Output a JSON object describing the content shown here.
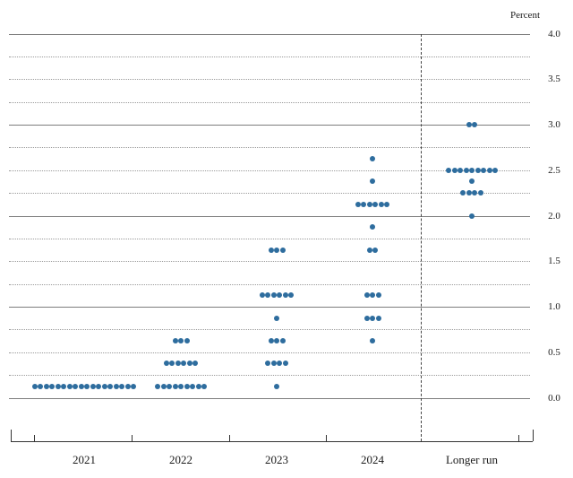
{
  "chart": {
    "unit_label": "Percent"
  },
  "chart_data": {
    "type": "scatter",
    "subtype": "fomc-dot-plot",
    "ylabel": "Percent",
    "ylim": [
      0.0,
      4.0
    ],
    "gridline_step": 0.25,
    "gridline_style": "solid at whole percents, dotted at quarter percents",
    "ytick_label_step": 0.5,
    "ytick_labels": [
      "4.0",
      "3.5",
      "3.0",
      "2.5",
      "2.0",
      "1.5",
      "1.0",
      "0.5",
      "0.0"
    ],
    "legend_position": "none",
    "categories": [
      "2021",
      "2022",
      "2023",
      "2024",
      "Longer run"
    ],
    "separator": {
      "style": "vertical dashed line",
      "between": [
        "2024",
        "Longer run"
      ]
    },
    "dot_color": "#2e6d9e",
    "series": [
      {
        "category": "2021",
        "dots": [
          {
            "rate": 0.125,
            "count": 18
          }
        ]
      },
      {
        "category": "2022",
        "dots": [
          {
            "rate": 0.625,
            "count": 3
          },
          {
            "rate": 0.375,
            "count": 6
          },
          {
            "rate": 0.125,
            "count": 9
          }
        ]
      },
      {
        "category": "2023",
        "dots": [
          {
            "rate": 1.625,
            "count": 3
          },
          {
            "rate": 1.125,
            "count": 6
          },
          {
            "rate": 0.875,
            "count": 1
          },
          {
            "rate": 0.625,
            "count": 3
          },
          {
            "rate": 0.375,
            "count": 4
          },
          {
            "rate": 0.125,
            "count": 1
          }
        ]
      },
      {
        "category": "2024",
        "dots": [
          {
            "rate": 2.625,
            "count": 1
          },
          {
            "rate": 2.375,
            "count": 1
          },
          {
            "rate": 2.125,
            "count": 6
          },
          {
            "rate": 1.875,
            "count": 1
          },
          {
            "rate": 1.625,
            "count": 2
          },
          {
            "rate": 1.125,
            "count": 3
          },
          {
            "rate": 0.875,
            "count": 3
          },
          {
            "rate": 0.625,
            "count": 1
          }
        ]
      },
      {
        "category": "Longer run",
        "dots": [
          {
            "rate": 3.0,
            "count": 2
          },
          {
            "rate": 2.5,
            "count": 9
          },
          {
            "rate": 2.375,
            "count": 1
          },
          {
            "rate": 2.25,
            "count": 4
          },
          {
            "rate": 2.0,
            "count": 1
          }
        ]
      }
    ]
  }
}
